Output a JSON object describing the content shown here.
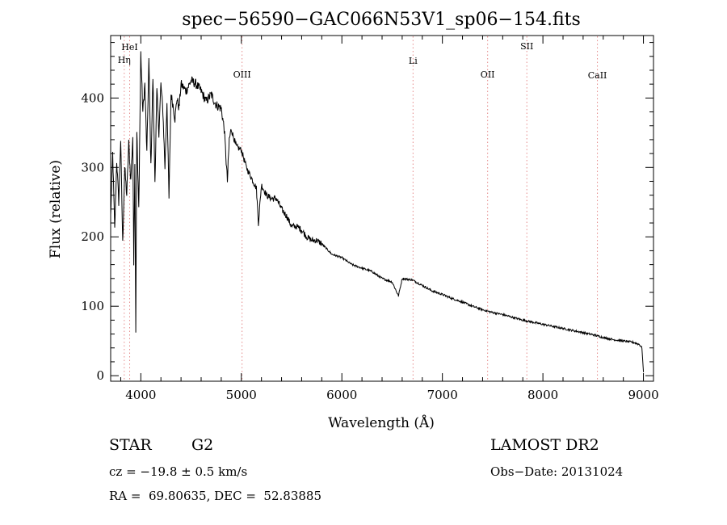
{
  "chart_data": {
    "type": "line",
    "title": "spec−56590−GAC066N53V1_sp06−154.fits",
    "xlabel": "Wavelength (Å)",
    "ylabel": "Flux (relative)",
    "xlim": [
      3700,
      9100
    ],
    "ylim": [
      -8,
      490
    ],
    "x_ticks": [
      4000,
      5000,
      6000,
      7000,
      8000,
      9000
    ],
    "y_ticks": [
      0,
      100,
      200,
      300,
      400
    ],
    "x_tick_labels": [
      "4000",
      "5000",
      "6000",
      "7000",
      "8000",
      "9000"
    ],
    "y_tick_labels": [
      "0",
      "100",
      "200",
      "300",
      "400"
    ],
    "grid": false,
    "series": [
      {
        "x": [
          3700,
          3720,
          3740,
          3760,
          3780,
          3800,
          3820,
          3840,
          3860,
          3880,
          3900,
          3920,
          3930,
          3940,
          3950,
          3960,
          3970,
          3980,
          4000,
          4020,
          4040,
          4060,
          4080,
          4100,
          4120,
          4140,
          4160,
          4180,
          4200,
          4220,
          4240,
          4260,
          4280,
          4300,
          4320,
          4340,
          4360,
          4380,
          4400,
          4450,
          4500,
          4550,
          4600,
          4650,
          4700,
          4750,
          4800,
          4830,
          4861,
          4880,
          4900,
          4950,
          5000,
          5050,
          5100,
          5150,
          5170,
          5200,
          5250,
          5300,
          5350,
          5400,
          5450,
          5500,
          5550,
          5600,
          5650,
          5700,
          5750,
          5800,
          5900,
          6000,
          6100,
          6200,
          6300,
          6400,
          6500,
          6563,
          6600,
          6700,
          6800,
          6900,
          7000,
          7100,
          7200,
          7300,
          7400,
          7500,
          7600,
          7700,
          7800,
          7900,
          8000,
          8100,
          8200,
          8300,
          8400,
          8500,
          8600,
          8700,
          8800,
          8900,
          8960,
          8985,
          9000
        ],
        "y": [
          230,
          320,
          210,
          310,
          250,
          340,
          190,
          300,
          260,
          335,
          280,
          345,
          160,
          310,
          65,
          355,
          290,
          240,
          465,
          380,
          420,
          320,
          455,
          300,
          430,
          280,
          410,
          350,
          420,
          380,
          300,
          395,
          255,
          405,
          390,
          370,
          400,
          385,
          420,
          410,
          425,
          420,
          410,
          395,
          405,
          390,
          385,
          355,
          280,
          340,
          355,
          330,
          325,
          300,
          285,
          270,
          220,
          275,
          260,
          255,
          255,
          240,
          230,
          215,
          215,
          210,
          200,
          195,
          195,
          190,
          175,
          170,
          160,
          155,
          150,
          140,
          135,
          115,
          140,
          138,
          130,
          122,
          117,
          111,
          106,
          100,
          95,
          91,
          88,
          84,
          80,
          77,
          74,
          71,
          68,
          65,
          62,
          59,
          55,
          52,
          50,
          48,
          45,
          40,
          5
        ]
      }
    ],
    "annotations": [
      {
        "label": "HeI",
        "x": 3889
      },
      {
        "label": "Hη",
        "x": 3835
      },
      {
        "label": "OIII",
        "x": 5007
      },
      {
        "label": "Li",
        "x": 6708
      },
      {
        "label": "OII",
        "x": 7450
      },
      {
        "label": "SII",
        "x": 7840
      },
      {
        "label": "CaII",
        "x": 8542
      }
    ]
  },
  "info": {
    "object_type": "STAR",
    "subclass": "G2",
    "survey": "LAMOST DR2",
    "cz": "cz = −19.8 ± 0.5 km/s",
    "obs_date": "Obs−Date: 20131024",
    "coords": "RA =  69.80635, DEC =  52.83885"
  },
  "colors": {
    "spectrum": "#000000",
    "marker_line": "#e58a8a",
    "axis": "#000000"
  }
}
